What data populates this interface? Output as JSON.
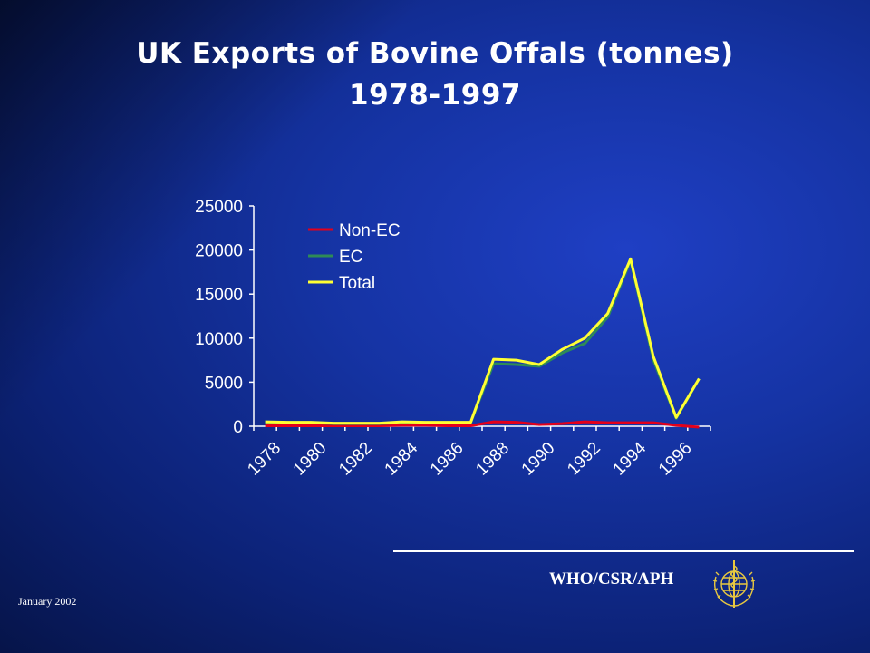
{
  "slide": {
    "title_line1": "UK Exports of Bovine Offals (tonnes)",
    "title_line2": "1978-1997",
    "footer_org": "WHO/CSR/APH",
    "footer_date": "January 2002"
  },
  "colors": {
    "non_ec": "#e3001b",
    "ec": "#2e8b57",
    "total": "#ffff33",
    "axis": "#ffffff"
  },
  "chart_data": {
    "type": "line",
    "title": "",
    "xlabel": "",
    "ylabel": "",
    "x": [
      1978,
      1979,
      1980,
      1981,
      1982,
      1983,
      1984,
      1985,
      1986,
      1987,
      1988,
      1989,
      1990,
      1991,
      1992,
      1993,
      1994,
      1995,
      1996,
      1997
    ],
    "x_tick_labels": [
      "1978",
      "1980",
      "1982",
      "1984",
      "1986",
      "1988",
      "1990",
      "1992",
      "1994",
      "1996"
    ],
    "y_ticks": [
      0,
      5000,
      10000,
      15000,
      20000,
      25000
    ],
    "ylim": [
      0,
      25000
    ],
    "grid": false,
    "legend_position": "top-left",
    "series": [
      {
        "name": "Non-EC",
        "color_key": "non_ec",
        "values": [
          50,
          50,
          50,
          50,
          50,
          50,
          100,
          100,
          50,
          50,
          500,
          450,
          200,
          300,
          500,
          400,
          400,
          400,
          100,
          -100
        ]
      },
      {
        "name": "EC",
        "color_key": "ec",
        "values": [
          400,
          400,
          400,
          300,
          300,
          300,
          400,
          400,
          400,
          400,
          7100,
          7000,
          6800,
          8300,
          9400,
          12400,
          18800,
          7500,
          900,
          5400
        ]
      },
      {
        "name": "Total",
        "color_key": "total",
        "values": [
          500,
          450,
          450,
          350,
          350,
          350,
          500,
          450,
          450,
          450,
          7600,
          7500,
          7000,
          8700,
          10000,
          12800,
          19000,
          7900,
          1000,
          5400
        ]
      }
    ]
  }
}
